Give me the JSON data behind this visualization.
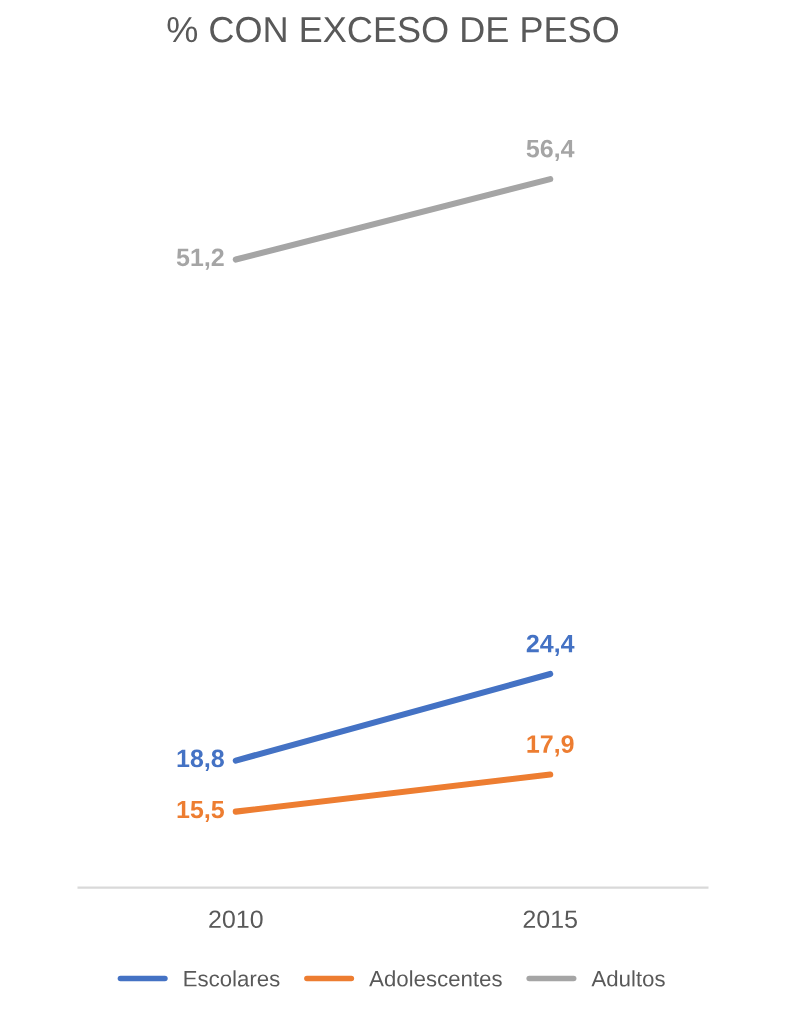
{
  "chart_data": {
    "type": "line",
    "title": "% CON EXCESO DE PESO",
    "categories": [
      "2010",
      "2015"
    ],
    "series": [
      {
        "name": "Escolares",
        "color": "#4472c4",
        "values": [
          18.8,
          24.4
        ],
        "value_labels": [
          "18,8",
          "24,4"
        ]
      },
      {
        "name": "Adolescentes",
        "color": "#ed7d31",
        "values": [
          15.5,
          17.9
        ],
        "value_labels": [
          "15,5",
          "17,9"
        ]
      },
      {
        "name": "Adultos",
        "color": "#a5a5a5",
        "values": [
          51.2,
          56.4
        ],
        "value_labels": [
          "51,2",
          "56,4"
        ]
      }
    ],
    "tick_labels": "x",
    "grid": false,
    "legend": "bottom",
    "marker": "none",
    "line_style": "solid"
  }
}
